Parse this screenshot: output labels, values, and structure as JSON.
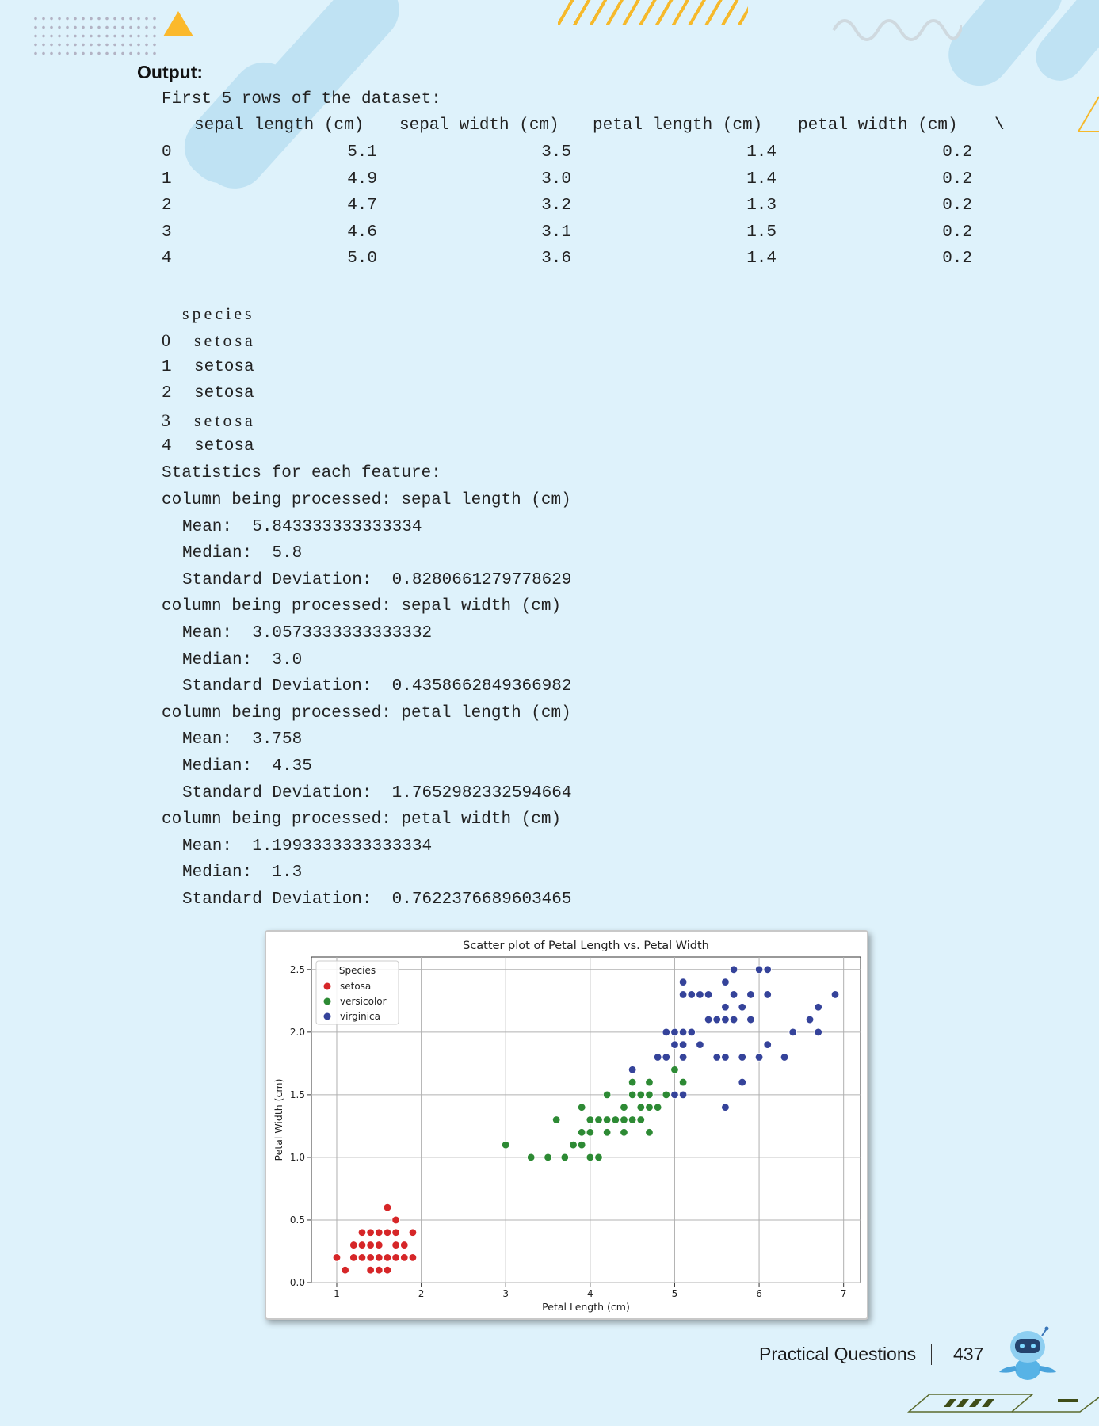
{
  "output_label": "Output:",
  "df_heading": "First 5 rows of the dataset:",
  "df_columns": [
    "sepal length (cm)",
    "sepal width (cm)",
    "petal length (cm)",
    "petal width (cm)"
  ],
  "df_continuation": "\\",
  "df_rows": [
    {
      "index": "0",
      "values": [
        "5.1",
        "3.5",
        "1.4",
        "0.2"
      ]
    },
    {
      "index": "1",
      "values": [
        "4.9",
        "3.0",
        "1.4",
        "0.2"
      ]
    },
    {
      "index": "2",
      "values": [
        "4.7",
        "3.2",
        "1.3",
        "0.2"
      ]
    },
    {
      "index": "3",
      "values": [
        "4.6",
        "3.1",
        "1.5",
        "0.2"
      ]
    },
    {
      "index": "4",
      "values": [
        "5.0",
        "3.6",
        "1.4",
        "0.2"
      ]
    }
  ],
  "species_column": "species",
  "species_rows": [
    {
      "index": "0",
      "value": "setosa"
    },
    {
      "index": "1",
      "value": "setosa"
    },
    {
      "index": "2",
      "value": "setosa"
    },
    {
      "index": "3",
      "value": "setosa"
    },
    {
      "index": "4",
      "value": "setosa"
    }
  ],
  "stats_heading": "Statistics for each feature:",
  "stats": [
    {
      "header": "column being processed: sepal length (cm)",
      "mean": "Mean:  5.843333333333334",
      "median": "Median:  5.8",
      "std": "Standard Deviation:  0.8280661279778629"
    },
    {
      "header": "column being processed: sepal width (cm)",
      "mean": "Mean:  3.0573333333333332",
      "median": "Median:  3.0",
      "std": "Standard Deviation:  0.4358662849366982"
    },
    {
      "header": "column being processed: petal length (cm)",
      "mean": "Mean:  3.758",
      "median": "Median:  4.35",
      "std": "Standard Deviation:  1.7652982332594664"
    },
    {
      "header": "column being processed: petal width (cm)",
      "mean": "Mean:  1.1993333333333334",
      "median": "Median:  1.3",
      "std": "Standard Deviation:  0.7622376689603465"
    }
  ],
  "chart_data": {
    "type": "scatter",
    "title": "Scatter plot of Petal Length vs. Petal Width",
    "xlabel": "Petal Length (cm)",
    "ylabel": "Petal Width (cm)",
    "xlim": [
      0.7,
      7.2
    ],
    "ylim": [
      0,
      2.6
    ],
    "xticks": [
      "1",
      "2",
      "3",
      "4",
      "5",
      "6",
      "7"
    ],
    "yticks": [
      "0.0",
      "0.5",
      "1.0",
      "1.5",
      "2.0",
      "2.5"
    ],
    "grid": true,
    "legend_title": "Species",
    "legend_position": "top-left",
    "series": [
      {
        "name": "setosa",
        "color": "#d62628",
        "points": [
          [
            1.4,
            0.2
          ],
          [
            1.3,
            0.2
          ],
          [
            1.5,
            0.2
          ],
          [
            1.7,
            0.4
          ],
          [
            1.4,
            0.3
          ],
          [
            1.5,
            0.1
          ],
          [
            1.1,
            0.1
          ],
          [
            1.2,
            0.2
          ],
          [
            1.6,
            0.2
          ],
          [
            1.9,
            0.4
          ],
          [
            1.0,
            0.2
          ],
          [
            1.7,
            0.5
          ],
          [
            1.9,
            0.2
          ],
          [
            1.6,
            0.4
          ],
          [
            1.6,
            0.6
          ],
          [
            1.3,
            0.3
          ],
          [
            1.3,
            0.4
          ],
          [
            1.4,
            0.1
          ],
          [
            1.5,
            0.3
          ],
          [
            1.5,
            0.4
          ],
          [
            1.7,
            0.3
          ],
          [
            1.6,
            0.1
          ],
          [
            1.7,
            0.2
          ],
          [
            1.4,
            0.4
          ],
          [
            1.2,
            0.3
          ],
          [
            1.8,
            0.2
          ],
          [
            1.8,
            0.3
          ],
          [
            1.5,
            0.2
          ]
        ]
      },
      {
        "name": "versicolor",
        "color": "#2d8a34",
        "points": [
          [
            3.0,
            1.1
          ],
          [
            3.3,
            1.0
          ],
          [
            3.5,
            1.0
          ],
          [
            3.7,
            1.0
          ],
          [
            3.6,
            1.3
          ],
          [
            3.8,
            1.1
          ],
          [
            3.9,
            1.1
          ],
          [
            3.9,
            1.2
          ],
          [
            3.9,
            1.4
          ],
          [
            4.0,
            1.0
          ],
          [
            4.0,
            1.2
          ],
          [
            4.0,
            1.3
          ],
          [
            4.1,
            1.0
          ],
          [
            4.1,
            1.3
          ],
          [
            4.2,
            1.2
          ],
          [
            4.2,
            1.3
          ],
          [
            4.2,
            1.5
          ],
          [
            4.3,
            1.3
          ],
          [
            4.4,
            1.2
          ],
          [
            4.4,
            1.3
          ],
          [
            4.4,
            1.4
          ],
          [
            4.5,
            1.3
          ],
          [
            4.5,
            1.5
          ],
          [
            4.5,
            1.6
          ],
          [
            4.6,
            1.3
          ],
          [
            4.6,
            1.4
          ],
          [
            4.6,
            1.5
          ],
          [
            4.7,
            1.2
          ],
          [
            4.7,
            1.4
          ],
          [
            4.7,
            1.5
          ],
          [
            4.7,
            1.6
          ],
          [
            4.8,
            1.4
          ],
          [
            4.8,
            1.8
          ],
          [
            4.9,
            1.5
          ],
          [
            5.0,
            1.7
          ],
          [
            5.1,
            1.6
          ],
          [
            4.1,
            1.3
          ],
          [
            4.0,
            1.3
          ]
        ]
      },
      {
        "name": "virginica",
        "color": "#35439a",
        "points": [
          [
            4.5,
            1.7
          ],
          [
            4.8,
            1.8
          ],
          [
            4.9,
            1.8
          ],
          [
            4.9,
            2.0
          ],
          [
            5.0,
            1.5
          ],
          [
            5.0,
            1.9
          ],
          [
            5.0,
            2.0
          ],
          [
            5.1,
            1.5
          ],
          [
            5.1,
            1.8
          ],
          [
            5.1,
            1.9
          ],
          [
            5.1,
            2.0
          ],
          [
            5.1,
            2.3
          ],
          [
            5.1,
            2.4
          ],
          [
            5.2,
            2.0
          ],
          [
            5.2,
            2.3
          ],
          [
            5.3,
            1.9
          ],
          [
            5.3,
            2.3
          ],
          [
            5.4,
            2.3
          ],
          [
            5.4,
            2.1
          ],
          [
            5.5,
            1.8
          ],
          [
            5.5,
            2.1
          ],
          [
            5.6,
            1.4
          ],
          [
            5.6,
            1.8
          ],
          [
            5.6,
            2.1
          ],
          [
            5.6,
            2.2
          ],
          [
            5.6,
            2.4
          ],
          [
            5.7,
            2.1
          ],
          [
            5.7,
            2.3
          ],
          [
            5.7,
            2.5
          ],
          [
            5.8,
            1.6
          ],
          [
            5.8,
            1.8
          ],
          [
            5.8,
            2.2
          ],
          [
            5.9,
            2.1
          ],
          [
            5.9,
            2.3
          ],
          [
            6.0,
            1.8
          ],
          [
            6.0,
            2.5
          ],
          [
            6.1,
            1.9
          ],
          [
            6.1,
            2.3
          ],
          [
            6.1,
            2.5
          ],
          [
            6.3,
            1.8
          ],
          [
            6.4,
            2.0
          ],
          [
            6.6,
            2.1
          ],
          [
            6.7,
            2.0
          ],
          [
            6.7,
            2.2
          ],
          [
            6.9,
            2.3
          ],
          [
            5.5,
            2.1
          ],
          [
            5.8,
            2.2
          ],
          [
            5.9,
            2.3
          ],
          [
            5.2,
            2.3
          ]
        ]
      }
    ]
  },
  "footer": {
    "section": "Practical Questions",
    "page_number": "437"
  }
}
